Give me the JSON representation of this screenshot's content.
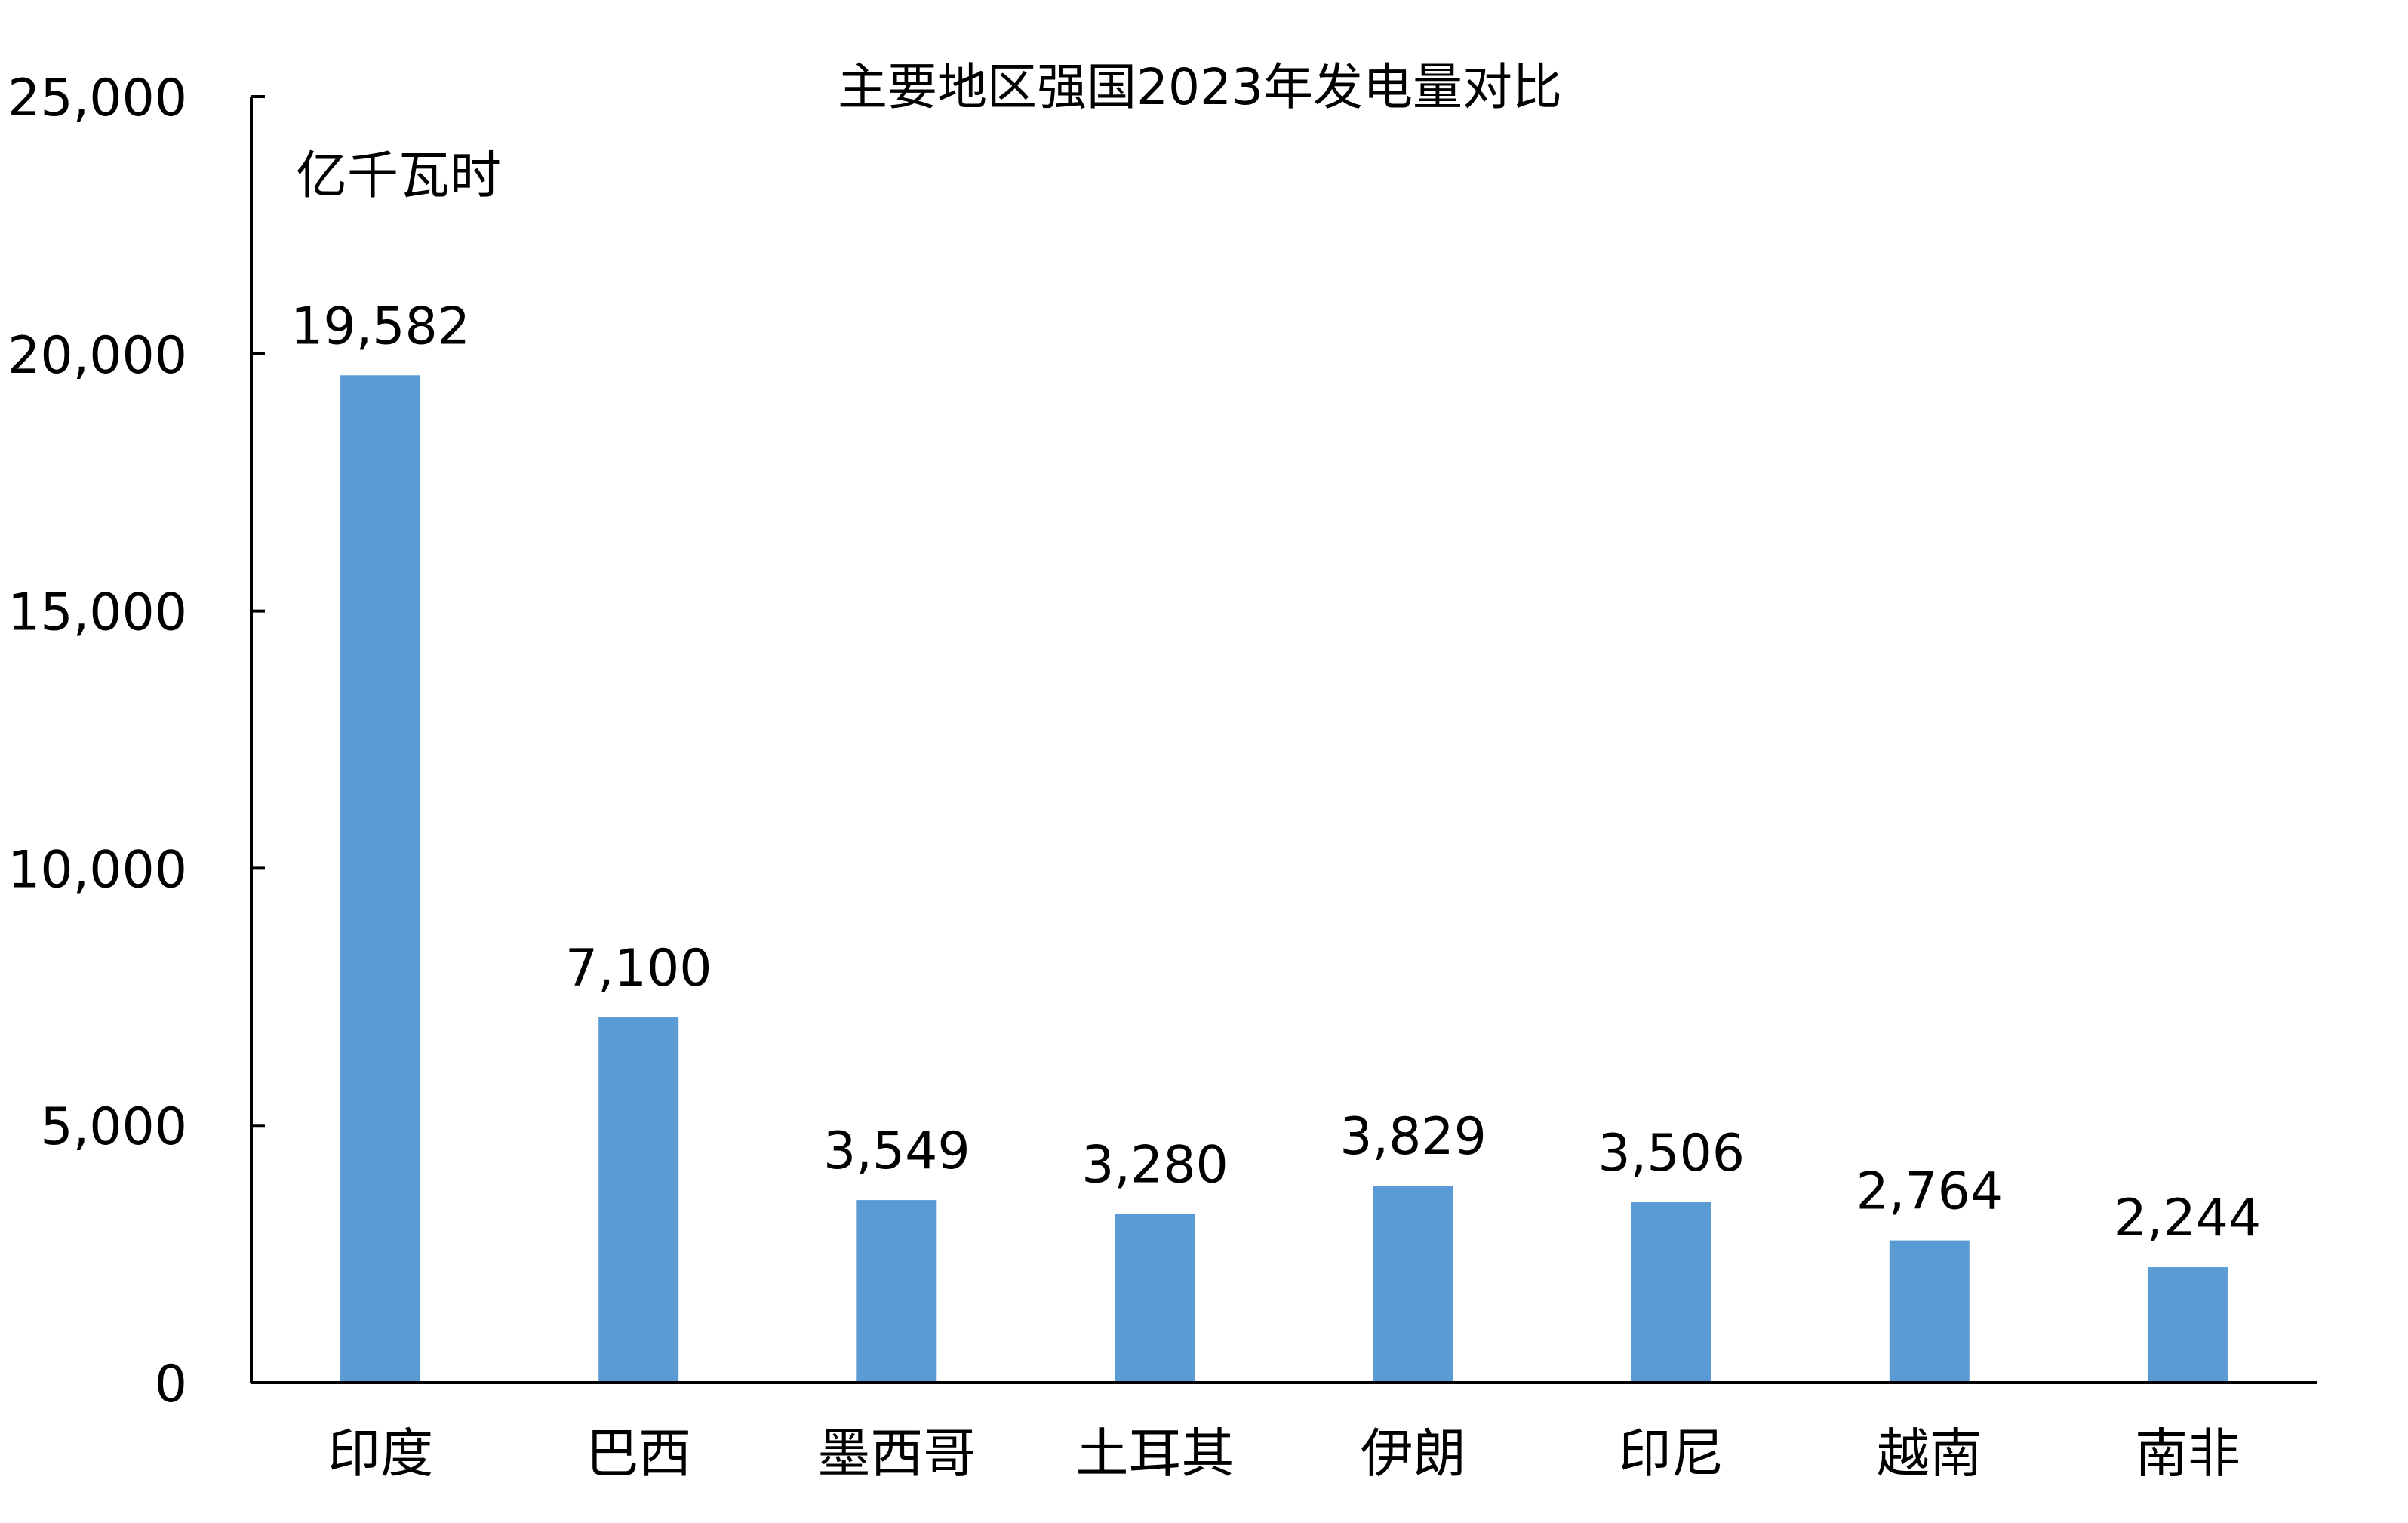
{
  "chart_data": {
    "type": "bar",
    "title": "主要地区强国2023年发电量对比",
    "unit_label": "亿千瓦时",
    "categories": [
      "印度",
      "巴西",
      "墨西哥",
      "土耳其",
      "伊朗",
      "印尼",
      "越南",
      "南非"
    ],
    "series": [
      {
        "values": [
          19582,
          7100,
          3549,
          3280,
          3829,
          3506,
          2764,
          2244
        ],
        "color": "#5b9bd5"
      }
    ],
    "data_labels": [
      "19,582",
      "7,100",
      "3,549",
      "3,280",
      "3,829",
      "3,506",
      "2,764",
      "2,244"
    ],
    "ylim": [
      0,
      25000
    ],
    "yticks": [
      0,
      5000,
      10000,
      15000,
      20000,
      25000
    ],
    "ytick_labels": [
      "0",
      "5,000",
      "10,000",
      "15,000",
      "20,000",
      "25,000"
    ],
    "xlabel": "",
    "ylabel": "",
    "grid": false,
    "legend": "none"
  }
}
